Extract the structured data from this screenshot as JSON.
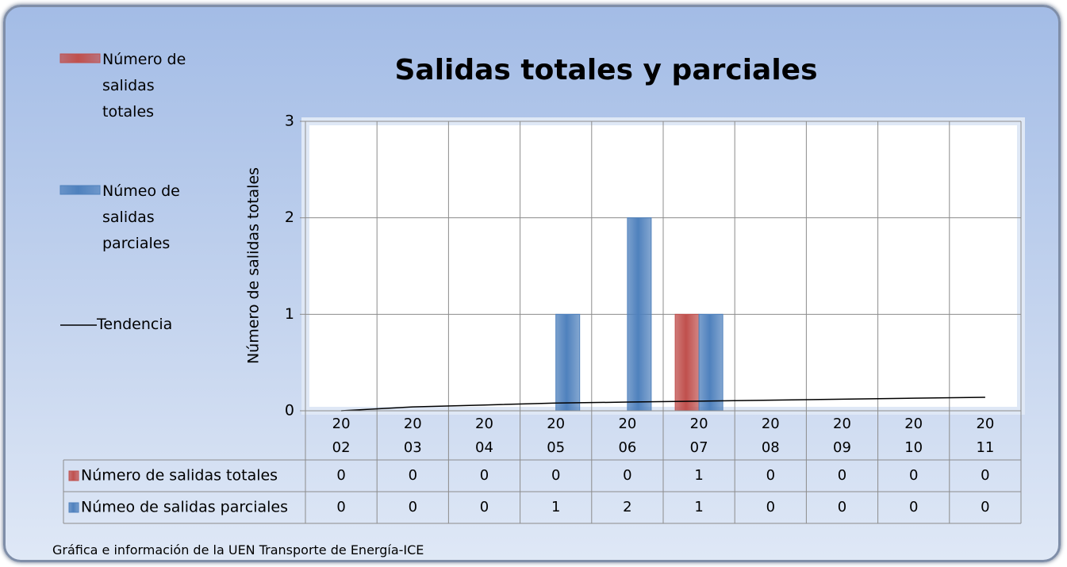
{
  "chart_data": {
    "type": "bar",
    "title": "Salidas totales  y parciales",
    "y_label": "Número de salidas totales",
    "categories": [
      "2002",
      "2003",
      "2004",
      "2005",
      "2006",
      "2007",
      "2008",
      "2009",
      "2010",
      "2011"
    ],
    "series": [
      {
        "name": "Número de salidas totales",
        "color": "#c0504d",
        "values": [
          0,
          0,
          0,
          0,
          0,
          1,
          0,
          0,
          0,
          0
        ]
      },
      {
        "name": "Númeo de salidas parciales",
        "color": "#4f81bd",
        "values": [
          0,
          0,
          0,
          1,
          2,
          1,
          0,
          0,
          0,
          0
        ]
      }
    ],
    "trendline": {
      "name": "Tendencia",
      "color": "#000000",
      "values": [
        0.0,
        0.04,
        0.06,
        0.08,
        0.09,
        0.1,
        0.11,
        0.12,
        0.13,
        0.14
      ]
    },
    "ylim": [
      0,
      3
    ],
    "yticks": [
      0,
      1,
      2,
      3
    ],
    "grid": true,
    "legend": "left",
    "source": "Gráfica e información de la UEN Transporte de Energía-ICE"
  }
}
